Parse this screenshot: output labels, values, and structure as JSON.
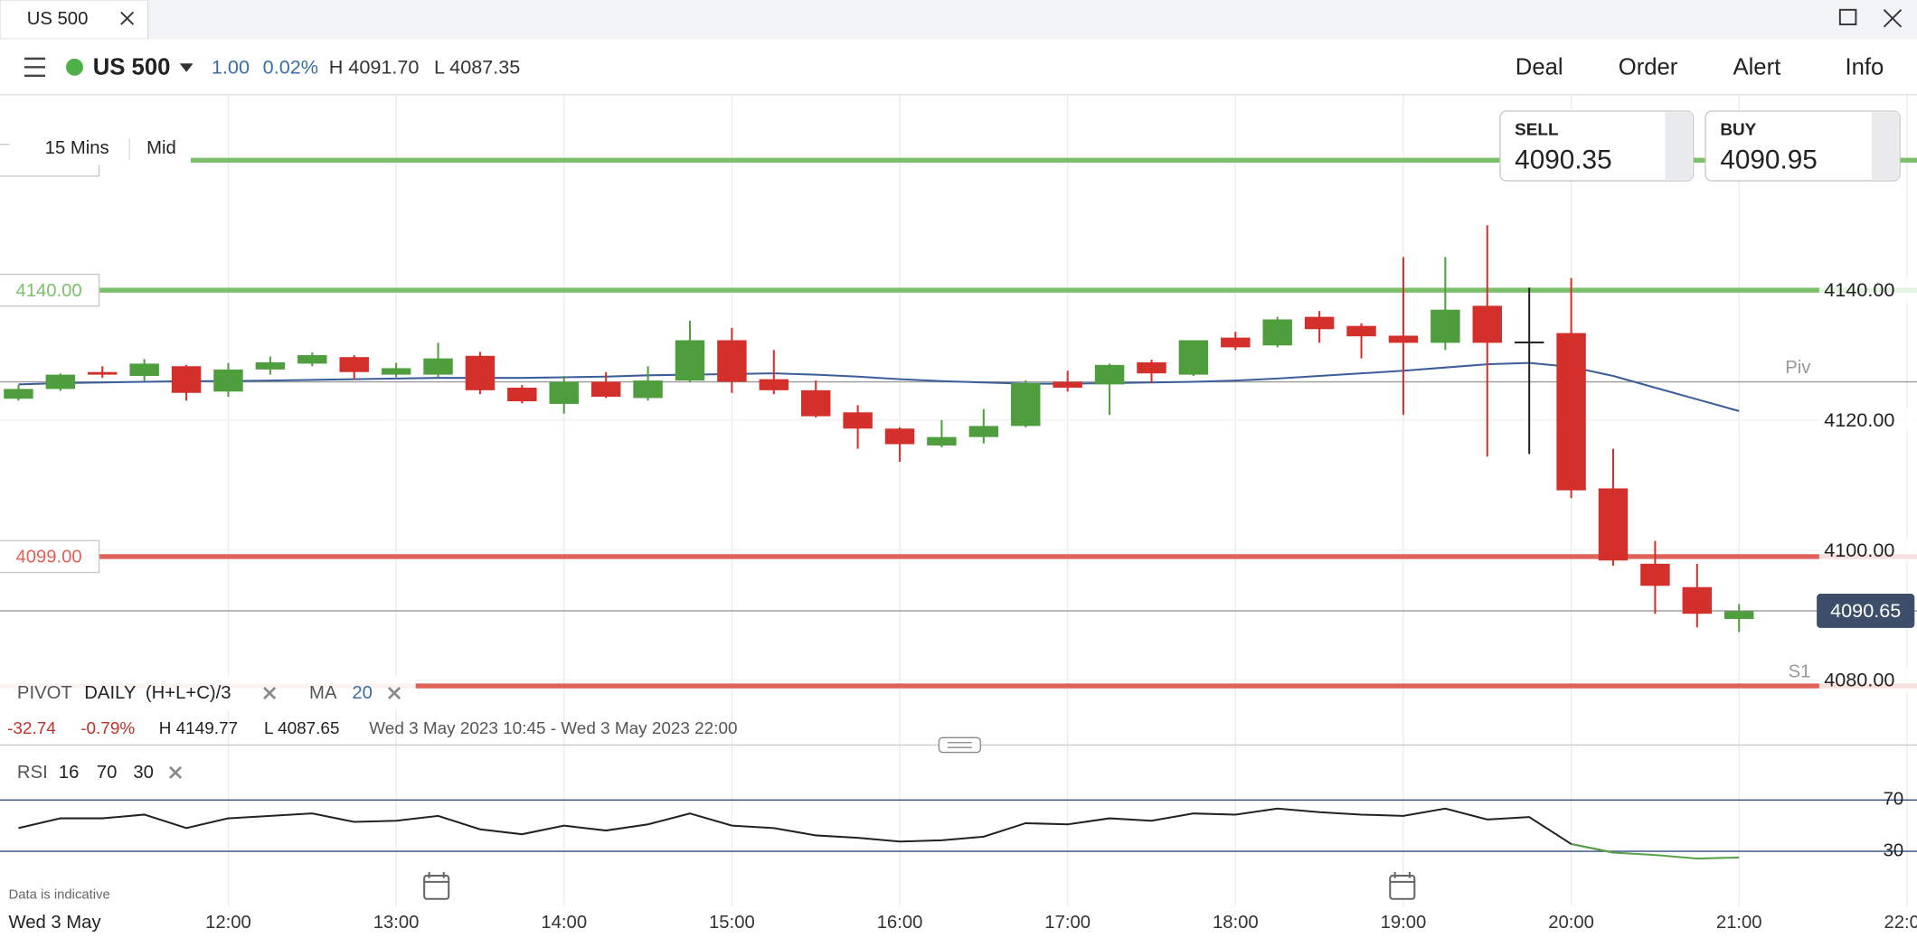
{
  "tab": {
    "title": "US 500"
  },
  "toolbar": {
    "market": "US 500",
    "change": "1.00",
    "change_pct": "0.02%",
    "high": "H 4091.70",
    "low": "L 4087.35",
    "actions": [
      "Deal",
      "Order",
      "Alert",
      "Info"
    ]
  },
  "chart_controls": {
    "timeframe": "15 Mins",
    "price_type": "Mid"
  },
  "quotes": {
    "sell_label": "SELL",
    "sell": "4090.35",
    "buy_label": "BUY",
    "buy": "4090.95"
  },
  "indicators": {
    "pivot": "PIVOT",
    "pivot_period": "DAILY",
    "pivot_formula": "(H+L+C)/3",
    "ma": "MA",
    "ma_period": "20"
  },
  "stats": {
    "change": "-32.74",
    "change_pct": "-0.79%",
    "high": "H 4149.77",
    "low": "L 4087.65",
    "range": "Wed 3 May 2023 10:45 - Wed 3 May 2023 22:00"
  },
  "disclaimer": "Data is indicative",
  "chart_data": {
    "type": "candlestick",
    "date_label": "Wed 3 May",
    "x": [
      10.75,
      11,
      11.25,
      11.5,
      11.75,
      12,
      12.25,
      12.5,
      12.75,
      13,
      13.25,
      13.5,
      13.75,
      14,
      14.25,
      14.5,
      14.75,
      15,
      15.25,
      15.5,
      15.75,
      16,
      16.25,
      16.5,
      16.75,
      17,
      17.25,
      17.5,
      17.75,
      18,
      18.25,
      18.5,
      18.75,
      19,
      19.25,
      19.5,
      19.75,
      20,
      20.25,
      20.5,
      20.75,
      21
    ],
    "open": [
      4123.3,
      4124.8,
      4127.4,
      4126.8,
      4128.3,
      4124.4,
      4127.8,
      4128.7,
      4129.7,
      4127.0,
      4127.0,
      4129.9,
      4125.0,
      4122.5,
      4125.9,
      4123.4,
      4126.1,
      4132.3,
      4126.3,
      4124.6,
      4121.2,
      4118.7,
      4116.1,
      4117.4,
      4119.1,
      4125.9,
      4125.5,
      4128.9,
      4127.0,
      4132.7,
      4131.5,
      4135.9,
      4134.5,
      4133.0,
      4131.9,
      4137.6,
      4132.1,
      4133.4,
      4109.5,
      4097.9,
      4094.3,
      4089.4
    ],
    "high": [
      4125.4,
      4127.2,
      4128.3,
      4129.4,
      4128.5,
      4128.8,
      4129.8,
      4130.4,
      4130.0,
      4128.8,
      4131.9,
      4130.5,
      4125.4,
      4126.8,
      4127.4,
      4128.3,
      4135.3,
      4134.2,
      4130.8,
      4126.1,
      4122.3,
      4118.9,
      4120.0,
      4121.7,
      4126.1,
      4127.6,
      4128.7,
      4129.3,
      4132.3,
      4133.6,
      4135.9,
      4136.8,
      4134.9,
      4145.1,
      4145.1,
      4150.0,
      4140.4,
      4141.9,
      4115.6,
      4101.4,
      4097.9,
      4091.7
    ],
    "low": [
      4123.0,
      4124.5,
      4126.5,
      4126.0,
      4123.0,
      4123.6,
      4127.0,
      4128.3,
      4126.2,
      4126.6,
      4126.6,
      4124.0,
      4122.6,
      4121.0,
      4123.4,
      4123.0,
      4125.8,
      4124.2,
      4124.0,
      4120.4,
      4115.6,
      4113.6,
      4115.8,
      4116.4,
      4118.9,
      4124.4,
      4120.8,
      4125.7,
      4126.8,
      4130.8,
      4131.2,
      4131.9,
      4129.5,
      4120.8,
      4130.8,
      4114.4,
      4114.8,
      4108.0,
      4097.6,
      4090.2,
      4088.1,
      4087.4
    ],
    "close": [
      4124.8,
      4127.0,
      4127.0,
      4128.7,
      4124.2,
      4127.8,
      4128.9,
      4130.0,
      4127.4,
      4128.0,
      4129.5,
      4124.6,
      4122.9,
      4125.9,
      4123.6,
      4126.1,
      4132.3,
      4125.9,
      4124.6,
      4120.6,
      4118.7,
      4116.3,
      4117.4,
      4119.1,
      4125.7,
      4125.0,
      4128.5,
      4127.2,
      4132.3,
      4131.2,
      4135.5,
      4134.0,
      4132.9,
      4131.9,
      4137.0,
      4131.9,
      4132.1,
      4109.2,
      4098.4,
      4094.5,
      4090.2,
      4090.6
    ],
    "up_color": "#4f9e3e",
    "down_color": "#d3302b",
    "flat_color": "#222222",
    "series": [
      {
        "name": "MA",
        "color": "#3b5e9b",
        "values": [
          4125.5,
          4125.7,
          4125.8,
          4125.9,
          4126.0,
          4126.0,
          4126.1,
          4126.2,
          4126.3,
          4126.4,
          4126.5,
          4126.5,
          4126.5,
          4126.6,
          4126.7,
          4126.9,
          4127.0,
          4127.1,
          4127.2,
          4127.0,
          4126.7,
          4126.3,
          4126.0,
          4125.8,
          4125.6,
          4125.6,
          4125.7,
          4125.8,
          4125.9,
          4126.1,
          4126.4,
          4126.8,
          4127.2,
          4127.6,
          4128.1,
          4128.6,
          4128.8,
          4128.2,
          4126.8,
          4125.0,
          4123.2,
          4121.4
        ]
      }
    ],
    "levels": [
      {
        "value": 4160,
        "color": "#7cc06c"
      },
      {
        "value": 4140,
        "label": "4140.00",
        "color": "#7cc06c"
      },
      {
        "value": 4099,
        "label": "4099.00",
        "color": "#e0605a"
      }
    ],
    "pivots": [
      {
        "value": 4125.9,
        "name": "Piv",
        "color": "#9a9a9a"
      },
      {
        "value": 4079.1,
        "name": "S1",
        "color": "#e0605a"
      }
    ],
    "current_price": {
      "value": 4090.65,
      "label": "4090.65"
    },
    "xlim": [
      10.64,
      22.06
    ],
    "xticks": [
      {
        "value": 12,
        "label": "12:00"
      },
      {
        "value": 13,
        "label": "13:00"
      },
      {
        "value": 14,
        "label": "14:00"
      },
      {
        "value": 15,
        "label": "15:00"
      },
      {
        "value": 16,
        "label": "16:00"
      },
      {
        "value": 17,
        "label": "17:00"
      },
      {
        "value": 18,
        "label": "18:00"
      },
      {
        "value": 19,
        "label": "19:00"
      },
      {
        "value": 20,
        "label": "20:00"
      },
      {
        "value": 21,
        "label": "21:00"
      },
      {
        "value": 22,
        "label": "22:00"
      }
    ],
    "ylim": [
      4070,
      4170
    ],
    "yticks": [
      {
        "value": 4140,
        "label": "4140.00"
      },
      {
        "value": 4120,
        "label": "4120.00"
      },
      {
        "value": 4100,
        "label": "4100.00"
      },
      {
        "value": 4080,
        "label": "4080.00"
      }
    ]
  },
  "rsi": {
    "type": "line",
    "name": "RSI",
    "period": "16",
    "upper": "70",
    "lower": "30",
    "color": "#222222",
    "low_color": "#5aa04a",
    "values": [
      48.1,
      55.7,
      55.7,
      58.6,
      48.1,
      55.7,
      57.6,
      59.5,
      52.9,
      53.8,
      57.6,
      47.1,
      43.3,
      50.0,
      46.2,
      51.0,
      59.5,
      50.0,
      48.1,
      42.4,
      40.5,
      37.6,
      38.6,
      41.4,
      51.9,
      51.0,
      55.7,
      53.8,
      59.5,
      58.6,
      63.3,
      60.5,
      58.6,
      57.6,
      63.3,
      54.8,
      56.7,
      35.7,
      29.0,
      27.1,
      24.3,
      25.2
    ],
    "ylim": [
      0,
      100
    ],
    "yticks": [
      70,
      30
    ]
  }
}
